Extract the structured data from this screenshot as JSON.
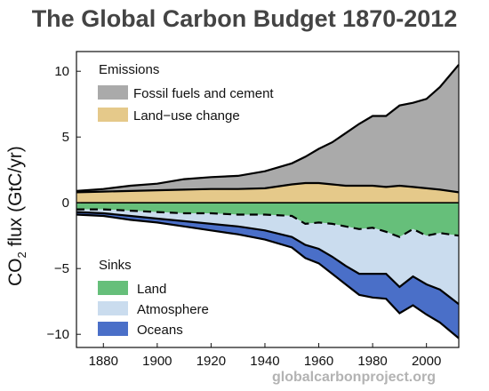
{
  "title": "The Global Carbon Budget 1870-2012",
  "credit": "globalcarbonproject.org",
  "chart_data": {
    "type": "area",
    "title": "The Global Carbon Budget 1870-2012",
    "ylabel_prefix": "CO",
    "ylabel_sub": "2",
    "ylabel_suffix": " flux (GtC/yr)",
    "xlabel": "",
    "xlim": [
      1870,
      2012
    ],
    "ylim": [
      -11,
      11.5
    ],
    "xticks": [
      1880,
      1900,
      1920,
      1940,
      1960,
      1980,
      2000
    ],
    "yticks": [
      -10,
      -5,
      0,
      5,
      10
    ],
    "grid": false,
    "legend_groups": [
      {
        "title": "Emissions",
        "position": "top-left",
        "entries": [
          {
            "label": "Fossil fuels and cement",
            "color": "#aaaaaa"
          },
          {
            "label": "Land−use change",
            "color": "#e5c98a"
          }
        ]
      },
      {
        "title": "Sinks",
        "position": "bottom-left",
        "entries": [
          {
            "label": "Land",
            "color": "#66bf7a"
          },
          {
            "label": "Atmosphere",
            "color": "#cadcee"
          },
          {
            "label": "Oceans",
            "color": "#4a6fc8"
          }
        ]
      }
    ],
    "x": [
      1870,
      1880,
      1890,
      1900,
      1910,
      1920,
      1930,
      1940,
      1950,
      1955,
      1960,
      1965,
      1970,
      1975,
      1980,
      1985,
      1990,
      1995,
      2000,
      2005,
      2012
    ],
    "series": [
      {
        "name": "Land−use change",
        "color": "#e5c98a",
        "values": [
          0.8,
          0.85,
          0.9,
          0.95,
          1.0,
          1.05,
          1.05,
          1.1,
          1.4,
          1.5,
          1.5,
          1.4,
          1.3,
          1.3,
          1.3,
          1.2,
          1.3,
          1.2,
          1.1,
          1.0,
          0.8
        ]
      },
      {
        "name": "Fossil fuels and cement",
        "color": "#aaaaaa",
        "values": [
          0.1,
          0.2,
          0.4,
          0.5,
          0.8,
          0.9,
          1.0,
          1.3,
          1.6,
          2.0,
          2.6,
          3.2,
          4.0,
          4.7,
          5.3,
          5.4,
          6.1,
          6.4,
          6.8,
          7.8,
          9.7
        ]
      },
      {
        "name": "Land",
        "color": "#66bf7a",
        "values": [
          -0.5,
          -0.5,
          -0.6,
          -0.7,
          -0.8,
          -0.8,
          -0.9,
          -0.9,
          -1.0,
          -1.6,
          -1.5,
          -1.6,
          -1.8,
          -2.0,
          -1.9,
          -2.2,
          -2.6,
          -2.0,
          -2.5,
          -2.3,
          -2.5
        ]
      },
      {
        "name": "Atmosphere",
        "color": "#cadcee",
        "values": [
          -0.2,
          -0.3,
          -0.4,
          -0.5,
          -0.6,
          -0.8,
          -0.9,
          -1.2,
          -1.6,
          -1.6,
          -2.0,
          -2.5,
          -3.0,
          -3.4,
          -3.5,
          -3.2,
          -3.8,
          -3.6,
          -3.7,
          -4.3,
          -5.2
        ]
      },
      {
        "name": "Oceans",
        "color": "#4a6fc8",
        "values": [
          -0.2,
          -0.2,
          -0.3,
          -0.3,
          -0.4,
          -0.5,
          -0.6,
          -0.7,
          -0.8,
          -1.0,
          -1.1,
          -1.3,
          -1.4,
          -1.6,
          -1.8,
          -1.9,
          -2.0,
          -2.2,
          -2.3,
          -2.5,
          -2.6
        ]
      }
    ]
  }
}
